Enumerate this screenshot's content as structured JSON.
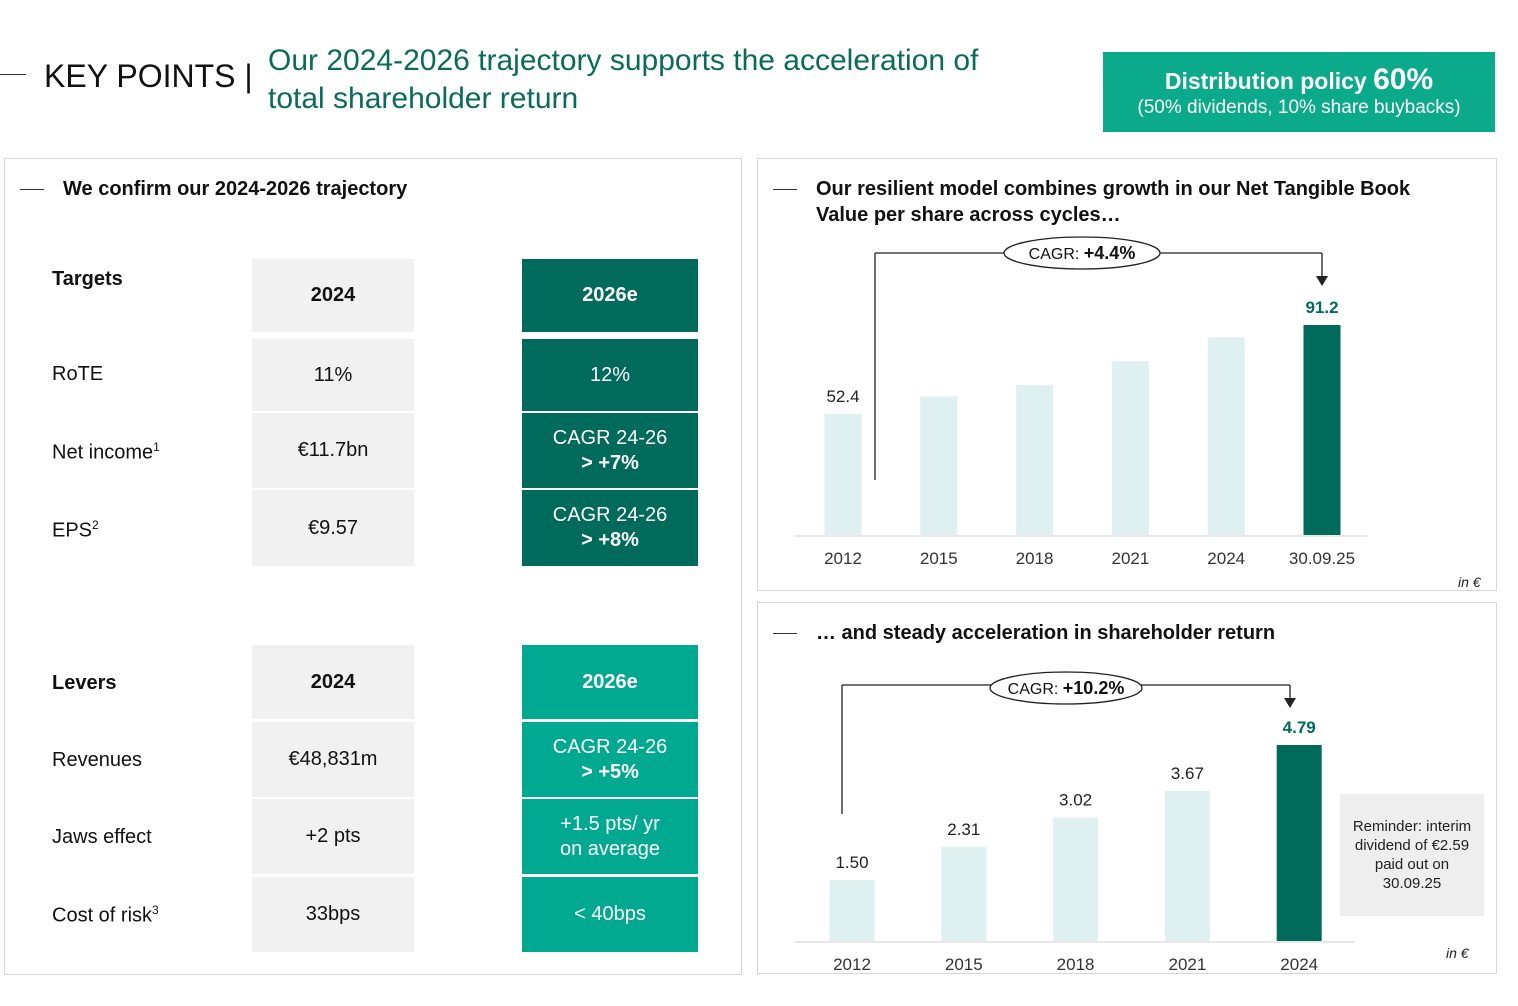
{
  "header": {
    "key_points": "KEY POINTS |",
    "title_line1": "Our 2024-2026 trajectory supports the acceleration of",
    "title_line2": "total shareholder return"
  },
  "policy": {
    "label": "Distribution policy",
    "pct": "60%",
    "detail": "(50% dividends, 10% share buybacks)"
  },
  "left": {
    "title": "We confirm our 2024-2026 trajectory",
    "targets": {
      "label": "Targets",
      "col_2024": "2024",
      "col_2026": "2026e",
      "rows": [
        {
          "label": "RoTE",
          "sup": "",
          "v2024": "11%",
          "v2026_l1": "12%",
          "v2026_l2": ""
        },
        {
          "label": "Net income",
          "sup": "1",
          "v2024": "€11.7bn",
          "v2026_l1": "CAGR 24-26",
          "v2026_l2": "> +7%"
        },
        {
          "label": "EPS",
          "sup": "2",
          "v2024": "€9.57",
          "v2026_l1": "CAGR 24-26",
          "v2026_l2": "> +8%"
        }
      ]
    },
    "levers": {
      "label": "Levers",
      "col_2024": "2024",
      "col_2026": "2026e",
      "rows": [
        {
          "label": "Revenues",
          "sup": "",
          "v2024": "€48,831m",
          "v2026_l1": "CAGR 24-26",
          "v2026_l2": "> +5%"
        },
        {
          "label": "Jaws effect",
          "sup": "",
          "v2024": "+2 pts",
          "v2026_l1": "+1.5 pts/ yr",
          "v2026_l2": "on average"
        },
        {
          "label": "Cost of risk",
          "sup": "3",
          "v2024": "33bps",
          "v2026_l1": "< 40bps",
          "v2026_l2": ""
        }
      ]
    }
  },
  "chart_top": {
    "title_line1": "Our resilient model combines growth in our Net Tangible Book",
    "title_line2": "Value per share across cycles…",
    "cagr_label": "CAGR:",
    "cagr_value": "+4.4%",
    "unit": "in €"
  },
  "chart_bottom": {
    "title": "… and steady acceleration in shareholder return",
    "cagr_label": "CAGR:",
    "cagr_value": "+10.2%",
    "unit": "in €",
    "reminder": "Reminder: interim dividend of €2.59 paid out on 30.09.25"
  },
  "colors": {
    "dark_green": "#006a5b",
    "teal": "#00a98f",
    "light_bar": "#dff0f0",
    "title_green": "#0b6b59"
  },
  "chart_data": [
    {
      "type": "bar",
      "categories": [
        "2012",
        "2015",
        "2018",
        "2021",
        "2024",
        "30.09.25"
      ],
      "values": [
        52.4,
        60.1,
        65.0,
        75.4,
        85.8,
        91.2
      ],
      "data_labels": [
        "52.4",
        "",
        "",
        "",
        "",
        "91.2"
      ],
      "highlight_index": 5,
      "ylim": [
        0,
        100
      ],
      "grid": false
    },
    {
      "type": "bar",
      "categories": [
        "2012",
        "2015",
        "2018",
        "2021",
        "2024"
      ],
      "values": [
        1.5,
        2.31,
        3.02,
        3.67,
        4.79
      ],
      "data_labels": [
        "1.50",
        "2.31",
        "3.02",
        "3.67",
        "4.79"
      ],
      "highlight_index": 4,
      "ylim": [
        0,
        5.2
      ],
      "grid": false
    }
  ]
}
